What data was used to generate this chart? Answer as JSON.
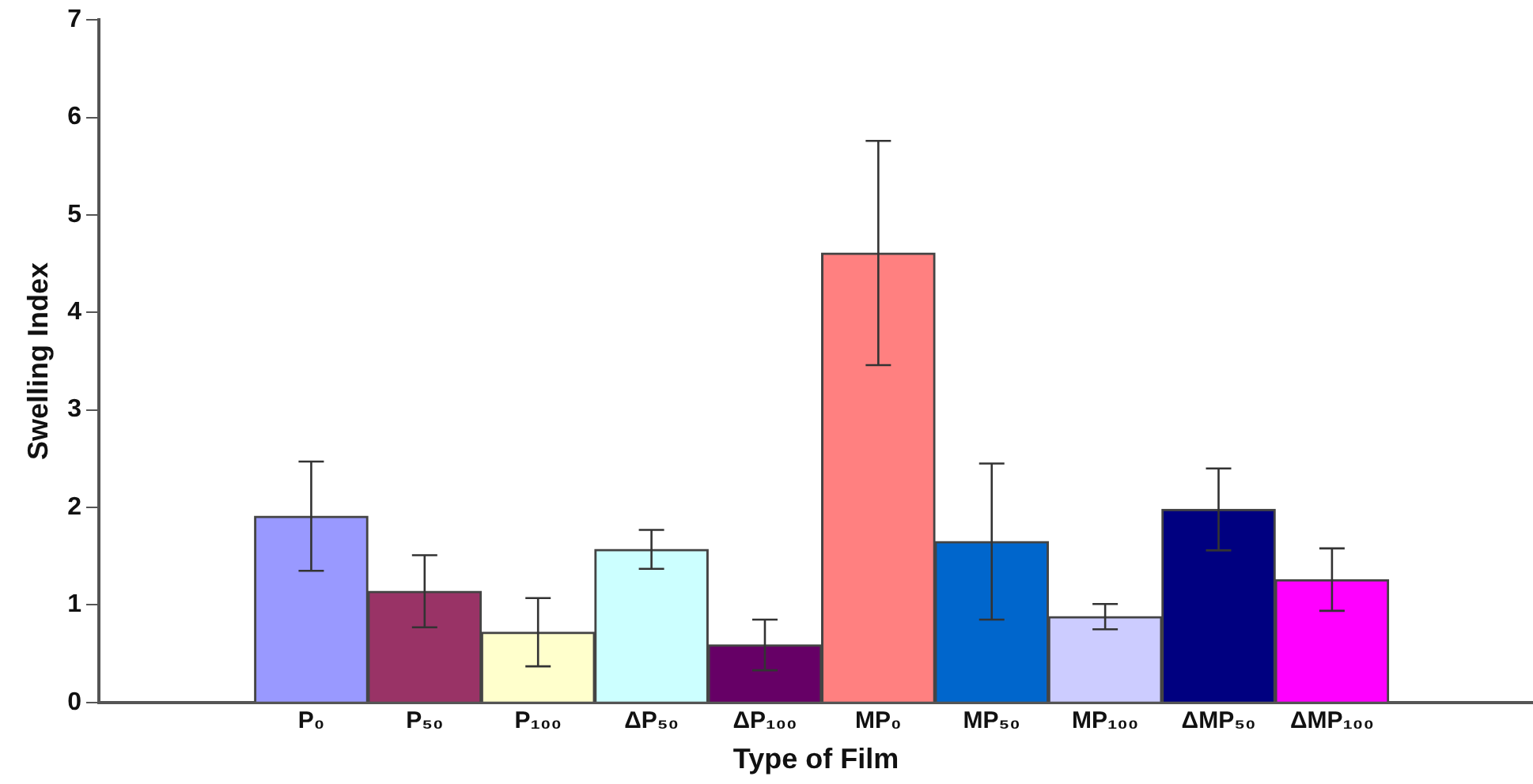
{
  "chart_data": {
    "type": "bar",
    "xlabel": "Type of Film",
    "ylabel": "Swelling Index",
    "categories": [
      "P₀",
      "P₅₀",
      "P₁₀₀",
      "ΔP₅₀",
      "ΔP₁₀₀",
      "MP₀",
      "MP₅₀",
      "MP₁₀₀",
      "ΔMP₅₀",
      "ΔMP₁₀₀"
    ],
    "values": [
      1.91,
      1.14,
      0.72,
      1.57,
      0.59,
      4.61,
      1.65,
      0.88,
      1.98,
      1.26
    ],
    "errors": [
      0.56,
      0.37,
      0.35,
      0.2,
      0.26,
      1.15,
      0.8,
      0.13,
      0.42,
      0.32
    ],
    "colors": [
      "#9999ff",
      "#993366",
      "#ffffcc",
      "#ccffff",
      "#660066",
      "#ff8080",
      "#0066cc",
      "#ccccff",
      "#000080",
      "#ff00ff"
    ],
    "ylim": [
      0,
      7
    ],
    "yticks": [
      0,
      1,
      2,
      3,
      4,
      5,
      6,
      7
    ],
    "grid": false,
    "legend": false
  }
}
